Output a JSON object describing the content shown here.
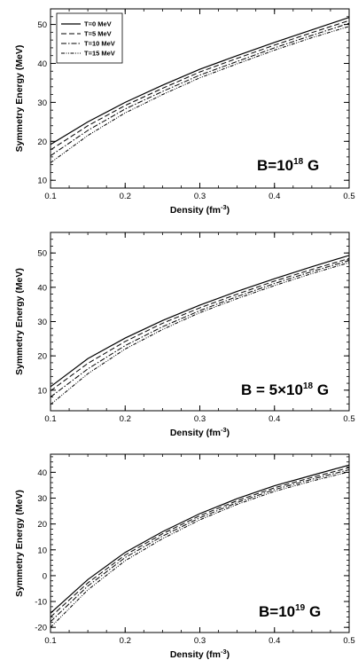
{
  "legend": [
    "T=0 MeV",
    "T=5 MeV",
    "T=10 MeV",
    "T=15 MeV"
  ],
  "chart_data": [
    {
      "type": "line",
      "xlabel_base": "Density (fm",
      "xlabel_exp": "-3",
      "xlabel_close": ")",
      "ylabel": "Symmetry Energy (MeV)",
      "field_prefix": "B=10",
      "field_exp": "18",
      "field_suffix": " G",
      "xlim": [
        0.1,
        0.5
      ],
      "ylim": [
        8,
        54
      ],
      "x_ticks": [
        0.1,
        0.2,
        0.3,
        0.4,
        0.5
      ],
      "y_ticks": [
        10,
        20,
        30,
        40,
        50
      ],
      "x_tick_labels": [
        "0.1",
        "0.2",
        "0.3",
        "0.4",
        "0.5"
      ],
      "y_tick_labels": [
        "10",
        "20",
        "30",
        "40",
        "50"
      ],
      "legend_placement": "top-left",
      "x": [
        0.1,
        0.15,
        0.2,
        0.25,
        0.3,
        0.35,
        0.4,
        0.45,
        0.5
      ],
      "series": [
        {
          "name": "T=0 MeV",
          "values": [
            19.2,
            25.0,
            30.0,
            34.4,
            38.5,
            42.0,
            45.4,
            48.6,
            51.8
          ]
        },
        {
          "name": "T=5 MeV",
          "values": [
            17.8,
            24.0,
            29.2,
            33.6,
            37.8,
            41.3,
            44.7,
            47.9,
            51.0
          ]
        },
        {
          "name": "T=10 MeV",
          "values": [
            16.3,
            22.8,
            28.3,
            32.8,
            37.0,
            40.5,
            44.0,
            47.2,
            50.3
          ]
        },
        {
          "name": "T=15 MeV",
          "values": [
            14.5,
            21.5,
            27.3,
            32.0,
            36.3,
            39.9,
            43.4,
            46.6,
            49.5
          ]
        }
      ]
    },
    {
      "type": "line",
      "xlabel_base": "Density (fm",
      "xlabel_exp": "-3",
      "xlabel_close": ")",
      "ylabel": "Symmetry Energy (MeV)",
      "field_prefix": "B = 5",
      "field_times": "×",
      "field_mid": "10",
      "field_exp": "18",
      "field_suffix": " G",
      "xlim": [
        0.1,
        0.5
      ],
      "ylim": [
        4,
        56
      ],
      "x_ticks": [
        0.1,
        0.2,
        0.3,
        0.4,
        0.5
      ],
      "y_ticks": [
        10,
        20,
        30,
        40,
        50
      ],
      "x_tick_labels": [
        "0.1",
        "0.2",
        "0.3",
        "0.4",
        "0.5"
      ],
      "y_tick_labels": [
        "10",
        "20",
        "30",
        "40",
        "50"
      ],
      "x": [
        0.1,
        0.15,
        0.2,
        0.25,
        0.3,
        0.35,
        0.4,
        0.45,
        0.5
      ],
      "series": [
        {
          "name": "T=0 MeV",
          "values": [
            11.0,
            19.2,
            25.2,
            30.3,
            34.8,
            38.8,
            42.5,
            46.0,
            49.3
          ]
        },
        {
          "name": "T=5 MeV",
          "values": [
            9.8,
            17.8,
            24.2,
            29.5,
            34.0,
            38.0,
            41.8,
            45.2,
            48.4
          ]
        },
        {
          "name": "T=10 MeV",
          "values": [
            8.0,
            16.2,
            23.0,
            28.5,
            33.2,
            37.3,
            41.1,
            44.6,
            47.8
          ]
        },
        {
          "name": "T=15 MeV",
          "values": [
            5.8,
            14.8,
            22.0,
            27.7,
            32.6,
            36.7,
            40.5,
            44.0,
            47.2
          ]
        }
      ]
    },
    {
      "type": "line",
      "xlabel_base": "Density (fm",
      "xlabel_exp": "-3",
      "xlabel_close": ")",
      "ylabel": "Symmetry Energy (MeV)",
      "field_prefix": "B=10",
      "field_exp": "19",
      "field_suffix": " G",
      "xlim": [
        0.1,
        0.5
      ],
      "ylim": [
        -22,
        47
      ],
      "x_ticks": [
        0.1,
        0.2,
        0.3,
        0.4,
        0.5
      ],
      "y_ticks": [
        -20,
        -10,
        0,
        10,
        20,
        30,
        40
      ],
      "x_tick_labels": [
        "0.1",
        "0.2",
        "0.3",
        "0.4",
        "0.5"
      ],
      "y_tick_labels": [
        "-20",
        "-10",
        "0",
        "10",
        "20",
        "30",
        "40"
      ],
      "x": [
        0.1,
        0.15,
        0.2,
        0.25,
        0.3,
        0.35,
        0.4,
        0.45,
        0.5
      ],
      "series": [
        {
          "name": "T=0 MeV",
          "values": [
            -14.5,
            -1.5,
            9.0,
            17.0,
            24.0,
            29.8,
            34.8,
            38.8,
            42.8
          ]
        },
        {
          "name": "T=5 MeV",
          "values": [
            -16.0,
            -2.8,
            8.0,
            16.2,
            23.2,
            29.0,
            34.0,
            38.0,
            41.8
          ]
        },
        {
          "name": "T=10 MeV",
          "values": [
            -17.8,
            -4.0,
            7.0,
            15.3,
            22.4,
            28.3,
            33.3,
            37.3,
            41.0
          ]
        },
        {
          "name": "T=15 MeV",
          "values": [
            -20.0,
            -5.5,
            5.8,
            14.3,
            21.6,
            27.6,
            32.6,
            36.6,
            40.2
          ]
        }
      ]
    }
  ]
}
